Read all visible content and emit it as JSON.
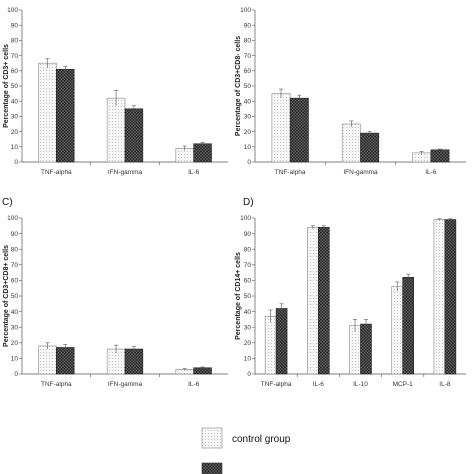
{
  "colors": {
    "control": "#f4f4f4",
    "patient": "#3a3a3a",
    "axis": "#555555"
  },
  "legend": {
    "items": [
      {
        "label": "control group",
        "pattern": "dotted-light"
      },
      {
        "label": "",
        "pattern": "dark-cross"
      }
    ]
  },
  "chart_data": [
    {
      "type": "bar",
      "panel_label": "",
      "ylabel": "Percentage of CD3+ cells",
      "ylim": [
        0,
        100
      ],
      "ytick_step": 10,
      "categories": [
        "TNF-alpha",
        "IFN-gamma",
        "IL-6"
      ],
      "series": [
        {
          "values": [
            65,
            42,
            9
          ],
          "errors": [
            3,
            5,
            1.5
          ]
        },
        {
          "values": [
            61,
            35,
            12
          ],
          "errors": [
            2,
            2,
            1
          ]
        }
      ]
    },
    {
      "type": "bar",
      "panel_label": "",
      "ylabel": "Percentage of CD3+CD8- cells",
      "ylim": [
        0,
        100
      ],
      "ytick_step": 10,
      "categories": [
        "TNF-alpha",
        "IFN-gamma",
        "IL-6"
      ],
      "series": [
        {
          "values": [
            45,
            25,
            6
          ],
          "errors": [
            3,
            2,
            1
          ]
        },
        {
          "values": [
            42,
            19,
            8
          ],
          "errors": [
            2,
            1,
            0.5
          ]
        }
      ]
    },
    {
      "type": "bar",
      "panel_label": "C)",
      "ylabel": "Percentage of CD3+CD8+ cells",
      "ylim": [
        0,
        100
      ],
      "ytick_step": 10,
      "categories": [
        "TNF-alpha",
        "IFN-gamma",
        "IL-6"
      ],
      "series": [
        {
          "values": [
            18,
            16,
            3
          ],
          "errors": [
            2,
            2.5,
            0.5
          ]
        },
        {
          "values": [
            17,
            16,
            4
          ],
          "errors": [
            2,
            1.5,
            0.5
          ]
        }
      ]
    },
    {
      "type": "bar",
      "panel_label": "D)",
      "ylabel": "Percentage of CD14+ cells",
      "ylim": [
        0,
        100
      ],
      "ytick_step": 10,
      "categories": [
        "TNF-alpha",
        "IL-6",
        "IL-10",
        "MCP-1",
        "IL-8"
      ],
      "series": [
        {
          "values": [
            37,
            94,
            31,
            56,
            99
          ],
          "errors": [
            4,
            1,
            4,
            3,
            0.5
          ]
        },
        {
          "values": [
            42,
            94,
            32,
            62,
            99
          ],
          "errors": [
            3,
            1,
            3,
            2,
            0.5
          ]
        }
      ]
    }
  ]
}
